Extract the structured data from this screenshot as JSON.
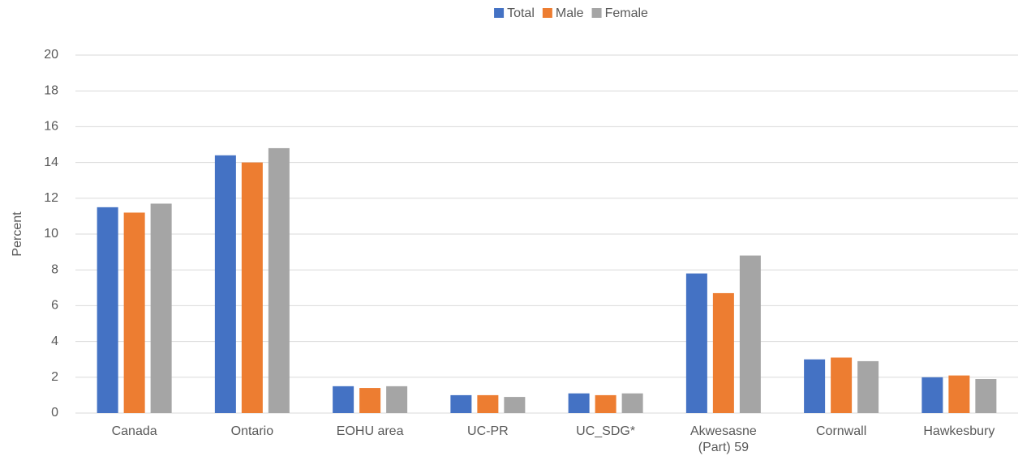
{
  "chart_data": {
    "type": "bar",
    "y_label": "Percent",
    "categories": [
      "Canada",
      "Ontario",
      "EOHU area",
      "UC-PR",
      "UC_SDG*",
      "Akwesasne (Part) 59",
      "Cornwall",
      "Hawkesbury"
    ],
    "series": [
      {
        "name": "Total",
        "color": "#4472c4",
        "values": [
          11.5,
          14.4,
          1.5,
          1.0,
          1.1,
          7.8,
          3.0,
          2.0
        ]
      },
      {
        "name": "Male",
        "color": "#ed7d31",
        "values": [
          11.2,
          14.0,
          1.4,
          1.0,
          1.0,
          6.7,
          3.1,
          2.1
        ]
      },
      {
        "name": "Female",
        "color": "#a5a5a5",
        "values": [
          11.7,
          14.8,
          1.5,
          0.9,
          1.1,
          8.8,
          2.9,
          1.9
        ]
      }
    ],
    "ylim": [
      0,
      20
    ],
    "yticks": [
      0,
      2,
      4,
      6,
      8,
      10,
      12,
      14,
      16,
      18,
      20
    ],
    "grid": true,
    "legend": "top"
  }
}
